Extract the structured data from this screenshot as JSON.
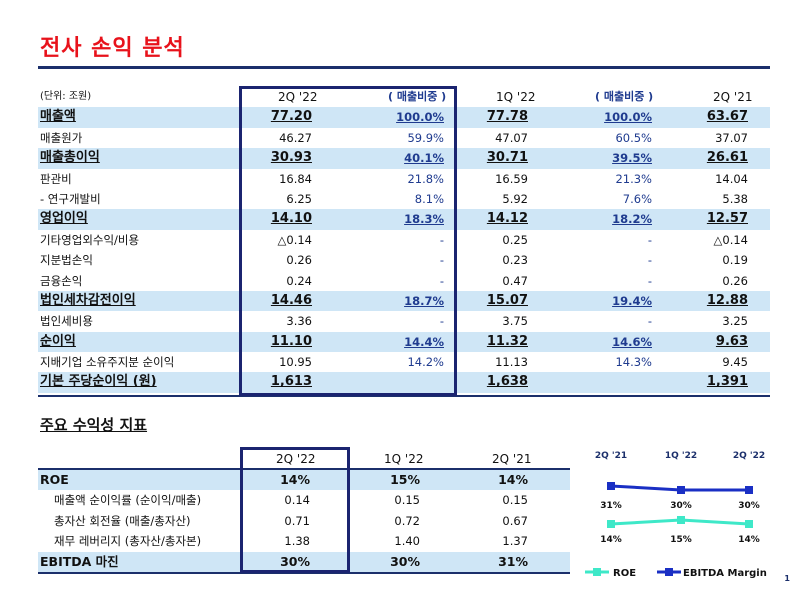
{
  "title": "전사 손익 분석",
  "main_table": {
    "unit_label": "(단위: 조원)",
    "headers": [
      "2Q '22",
      "( 매출비중 )",
      "1Q '22",
      "( 매출비중 )",
      "2Q '21"
    ],
    "rows": [
      {
        "label": "매출액",
        "v1": "77.20",
        "p1": "100.0%",
        "v2": "77.78",
        "p2": "100.0%",
        "v3": "63.67",
        "hl": true
      },
      {
        "label": "매출원가",
        "v1": "46.27",
        "p1": "59.9%",
        "v2": "47.07",
        "p2": "60.5%",
        "v3": "37.07",
        "hl": false
      },
      {
        "label": "매출총이익",
        "v1": "30.93",
        "p1": "40.1%",
        "v2": "30.71",
        "p2": "39.5%",
        "v3": "26.61",
        "hl": true
      },
      {
        "label": "판관비",
        "v1": "16.84",
        "p1": "21.8%",
        "v2": "16.59",
        "p2": "21.3%",
        "v3": "14.04",
        "hl": false
      },
      {
        "label": " - 연구개발비",
        "v1": "6.25",
        "p1": "8.1%",
        "v2": "5.92",
        "p2": "7.6%",
        "v3": "5.38",
        "hl": false
      },
      {
        "label": "영업이익",
        "v1": "14.10",
        "p1": "18.3%",
        "v2": "14.12",
        "p2": "18.2%",
        "v3": "12.57",
        "hl": true
      },
      {
        "label": "기타영업외수익/비용",
        "v1": "△0.14",
        "p1": "-",
        "v2": "0.25",
        "p2": "-",
        "v3": "△0.14",
        "hl": false
      },
      {
        "label": "지분법손익",
        "v1": "0.26",
        "p1": "-",
        "v2": "0.23",
        "p2": "-",
        "v3": "0.19",
        "hl": false
      },
      {
        "label": "금융손익",
        "v1": "0.24",
        "p1": "-",
        "v2": "0.47",
        "p2": "-",
        "v3": "0.26",
        "hl": false
      },
      {
        "label": "법인세차감전이익",
        "v1": "14.46",
        "p1": "18.7%",
        "v2": "15.07",
        "p2": "19.4%",
        "v3": "12.88",
        "hl": true
      },
      {
        "label": "법인세비용",
        "v1": "3.36",
        "p1": "-",
        "v2": "3.75",
        "p2": "-",
        "v3": "3.25",
        "hl": false
      },
      {
        "label": "순이익",
        "v1": "11.10",
        "p1": "14.4%",
        "v2": "11.32",
        "p2": "14.6%",
        "v3": "9.63",
        "hl": true
      },
      {
        "label": "지배기업 소유주지분 순이익",
        "v1": "10.95",
        "p1": "14.2%",
        "v2": "11.13",
        "p2": "14.3%",
        "v3": "9.45",
        "hl": false
      },
      {
        "label": "기본 주당순이익 (원)",
        "v1": "1,613",
        "p1": "",
        "v2": "1,638",
        "p2": "",
        "v3": "1,391",
        "hl": true
      }
    ]
  },
  "profitability": {
    "subtitle": "주요 수익성 지표",
    "headers": [
      "2Q '22",
      "1Q '22",
      "2Q '21"
    ],
    "rows": [
      {
        "label": "ROE",
        "v1": "14%",
        "v2": "15%",
        "v3": "14%",
        "hl": true,
        "indent": false
      },
      {
        "label": "매출액 순이익률 (순이익/매출)",
        "v1": "0.14",
        "v2": "0.15",
        "v3": "0.15",
        "hl": false,
        "indent": true
      },
      {
        "label": "총자산 회전율 (매출/총자산)",
        "v1": "0.71",
        "v2": "0.72",
        "v3": "0.67",
        "hl": false,
        "indent": true
      },
      {
        "label": "재무 레버리지 (총자산/총자본)",
        "v1": "1.38",
        "v2": "1.40",
        "v3": "1.37",
        "hl": false,
        "indent": true
      },
      {
        "label": "EBITDA 마진",
        "v1": "30%",
        "v2": "30%",
        "v3": "31%",
        "hl": true,
        "indent": false
      }
    ]
  },
  "chart_data": {
    "type": "line",
    "categories": [
      "2Q '21",
      "1Q '22",
      "2Q '22"
    ],
    "series": [
      {
        "name": "ROE",
        "values": [
          14,
          15,
          14
        ],
        "labels": [
          "14%",
          "15%",
          "14%"
        ],
        "color": "#3ee8c8"
      },
      {
        "name": "EBITDA Margin",
        "values": [
          31,
          30,
          30
        ],
        "labels": [
          "31%",
          "30%",
          "30%"
        ],
        "color": "#1a2fc4"
      }
    ]
  },
  "page_number": "1"
}
